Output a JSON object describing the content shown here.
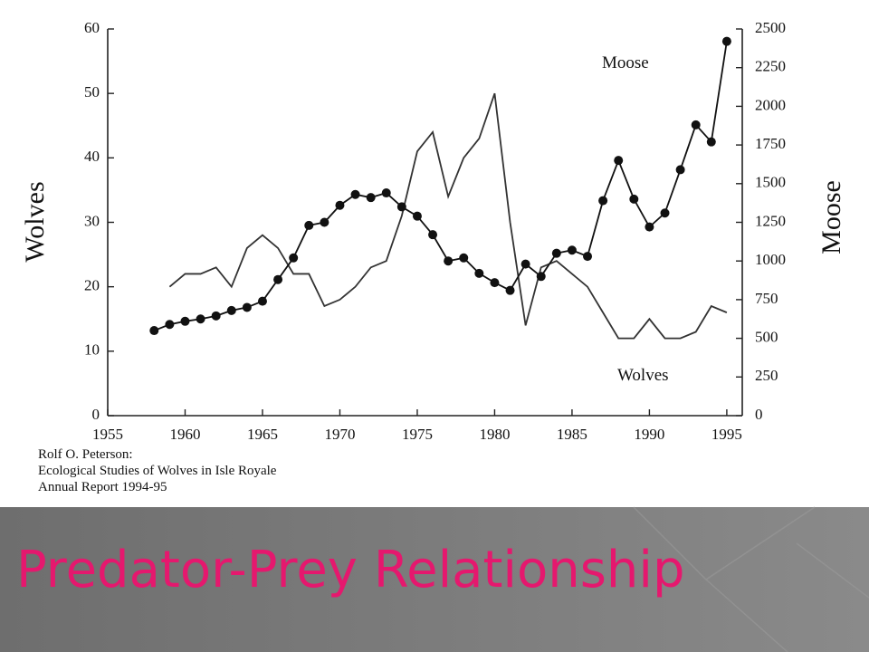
{
  "chart_data": {
    "type": "line",
    "title": "Predator-Prey Relationship",
    "y_label": "Wolves",
    "y2_label": "Moose",
    "annotations": [
      "Moose",
      "Wolves"
    ],
    "source": [
      "Rolf O. Peterson:",
      "Ecological Studies of Wolves in Isle Royale",
      "Annual Report 1994-95"
    ],
    "x": [
      1958,
      1959,
      1960,
      1961,
      1962,
      1963,
      1964,
      1965,
      1966,
      1967,
      1968,
      1969,
      1970,
      1971,
      1972,
      1973,
      1974,
      1975,
      1976,
      1977,
      1978,
      1979,
      1980,
      1981,
      1982,
      1983,
      1984,
      1985,
      1986,
      1987,
      1988,
      1989,
      1990,
      1991,
      1992,
      1993,
      1994,
      1995
    ],
    "series": [
      {
        "name": "Wolves",
        "color": "#333333",
        "axis": "y",
        "markers": false,
        "values": [
          null,
          20,
          22,
          22,
          23,
          20,
          26,
          28,
          26,
          22,
          22,
          17,
          18,
          20,
          23,
          24,
          31,
          41,
          44,
          34,
          40,
          43,
          50,
          30,
          14,
          23,
          24,
          22,
          20,
          16,
          12,
          12,
          15,
          12,
          12,
          13,
          17,
          16
        ]
      },
      {
        "name": "Moose",
        "color": "#111111",
        "axis": "y2",
        "markers": true,
        "values": [
          550,
          590,
          610,
          625,
          645,
          680,
          700,
          740,
          880,
          1020,
          1230,
          1250,
          1360,
          1430,
          1410,
          1440,
          1350,
          1290,
          1170,
          1000,
          1020,
          920,
          860,
          810,
          980,
          900,
          1050,
          1070,
          1030,
          1390,
          1650,
          1400,
          1220,
          1310,
          1590,
          1880,
          1770,
          2420
        ]
      }
    ],
    "xlim": [
      1955,
      1996
    ],
    "xticks": [
      1955,
      1960,
      1965,
      1970,
      1975,
      1980,
      1985,
      1990,
      1995
    ],
    "ylim": [
      0,
      60
    ],
    "yticks": [
      0,
      10,
      20,
      30,
      40,
      50,
      60
    ],
    "y2lim": [
      0,
      2500
    ],
    "y2ticks": [
      0,
      250,
      500,
      750,
      1000,
      1250,
      1500,
      1750,
      2000,
      2250,
      2500
    ]
  }
}
